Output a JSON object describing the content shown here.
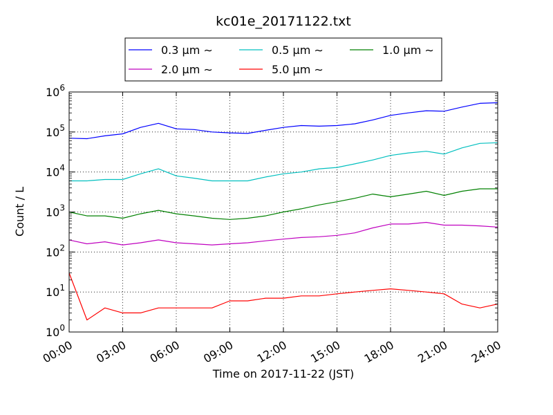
{
  "chart_data": {
    "type": "line",
    "title": "kc01e_20171122.txt",
    "xlabel": "Time on 2017-11-22 (JST)",
    "ylabel": "Count / L",
    "yscale": "log",
    "ylim": [
      1,
      1000000
    ],
    "x_tick_labels": [
      "00:00",
      "03:00",
      "06:00",
      "09:00",
      "12:00",
      "15:00",
      "18:00",
      "21:00",
      "24:00"
    ],
    "y_tick_labels": [
      {
        "base": "10",
        "exp": "0"
      },
      {
        "base": "10",
        "exp": "1"
      },
      {
        "base": "10",
        "exp": "2"
      },
      {
        "base": "10",
        "exp": "3"
      },
      {
        "base": "10",
        "exp": "4"
      },
      {
        "base": "10",
        "exp": "5"
      },
      {
        "base": "10",
        "exp": "6"
      }
    ],
    "grid": true,
    "legend_position": "top",
    "x_hours": [
      0,
      1,
      2,
      3,
      4,
      5,
      6,
      7,
      8,
      9,
      10,
      11,
      12,
      13,
      14,
      15,
      16,
      17,
      18,
      19,
      20,
      21,
      22,
      23,
      24
    ],
    "series": [
      {
        "name": "0.3 μm ∼",
        "color": "#0000ff",
        "values": [
          70000,
          68000,
          80000,
          90000,
          130000,
          165000,
          120000,
          115000,
          100000,
          95000,
          92000,
          110000,
          130000,
          145000,
          140000,
          145000,
          160000,
          200000,
          260000,
          300000,
          340000,
          330000,
          420000,
          520000,
          540000
        ]
      },
      {
        "name": "0.5 μm ∼",
        "color": "#00bfbf",
        "values": [
          6000,
          6000,
          6500,
          6500,
          9000,
          12000,
          8000,
          7000,
          6000,
          6000,
          6000,
          7500,
          9000,
          10000,
          12000,
          13000,
          16000,
          20000,
          26000,
          30000,
          33000,
          28000,
          40000,
          52000,
          54000
        ]
      },
      {
        "name": "1.0 μm ∼",
        "color": "#008000",
        "values": [
          1000,
          800,
          800,
          700,
          900,
          1100,
          900,
          800,
          700,
          650,
          700,
          800,
          1000,
          1200,
          1500,
          1800,
          2200,
          2800,
          2400,
          2800,
          3300,
          2600,
          3300,
          3800,
          3800
        ]
      },
      {
        "name": "2.0 μm ∼",
        "color": "#bf00bf",
        "values": [
          200,
          160,
          180,
          150,
          170,
          200,
          170,
          160,
          150,
          160,
          170,
          190,
          210,
          230,
          240,
          260,
          300,
          400,
          500,
          500,
          550,
          470,
          470,
          450,
          420
        ]
      },
      {
        "name": "5.0 μm ∼",
        "color": "#ff0000",
        "values": [
          30,
          2,
          4,
          3,
          3,
          4,
          4,
          4,
          4,
          6,
          6,
          7,
          7,
          8,
          8,
          9,
          10,
          11,
          12,
          11,
          10,
          9,
          5,
          4,
          5
        ]
      }
    ]
  }
}
